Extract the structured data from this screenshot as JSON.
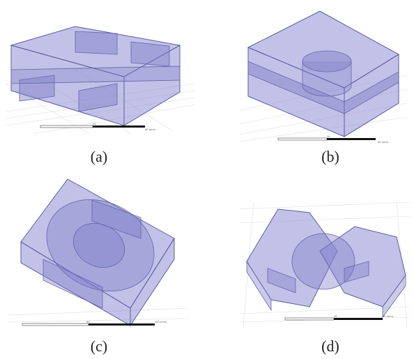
{
  "captions": {
    "a": "(a)",
    "b": "(b)",
    "c": "(c)",
    "d": "(d)"
  },
  "scale_bars": {
    "a": {
      "mid": "20",
      "end": "40 (mm)"
    },
    "b": {
      "mid": "20",
      "end": "40 (mm)"
    },
    "c": {
      "mid": "50",
      "end": "100 (mm)"
    },
    "d": {
      "mid": "25",
      "end": "50 (mm)"
    }
  },
  "colors": {
    "solid_fill": "#8f8fd6",
    "solid_edge": "#5a5aa0",
    "grid": "#d8d8d8"
  }
}
